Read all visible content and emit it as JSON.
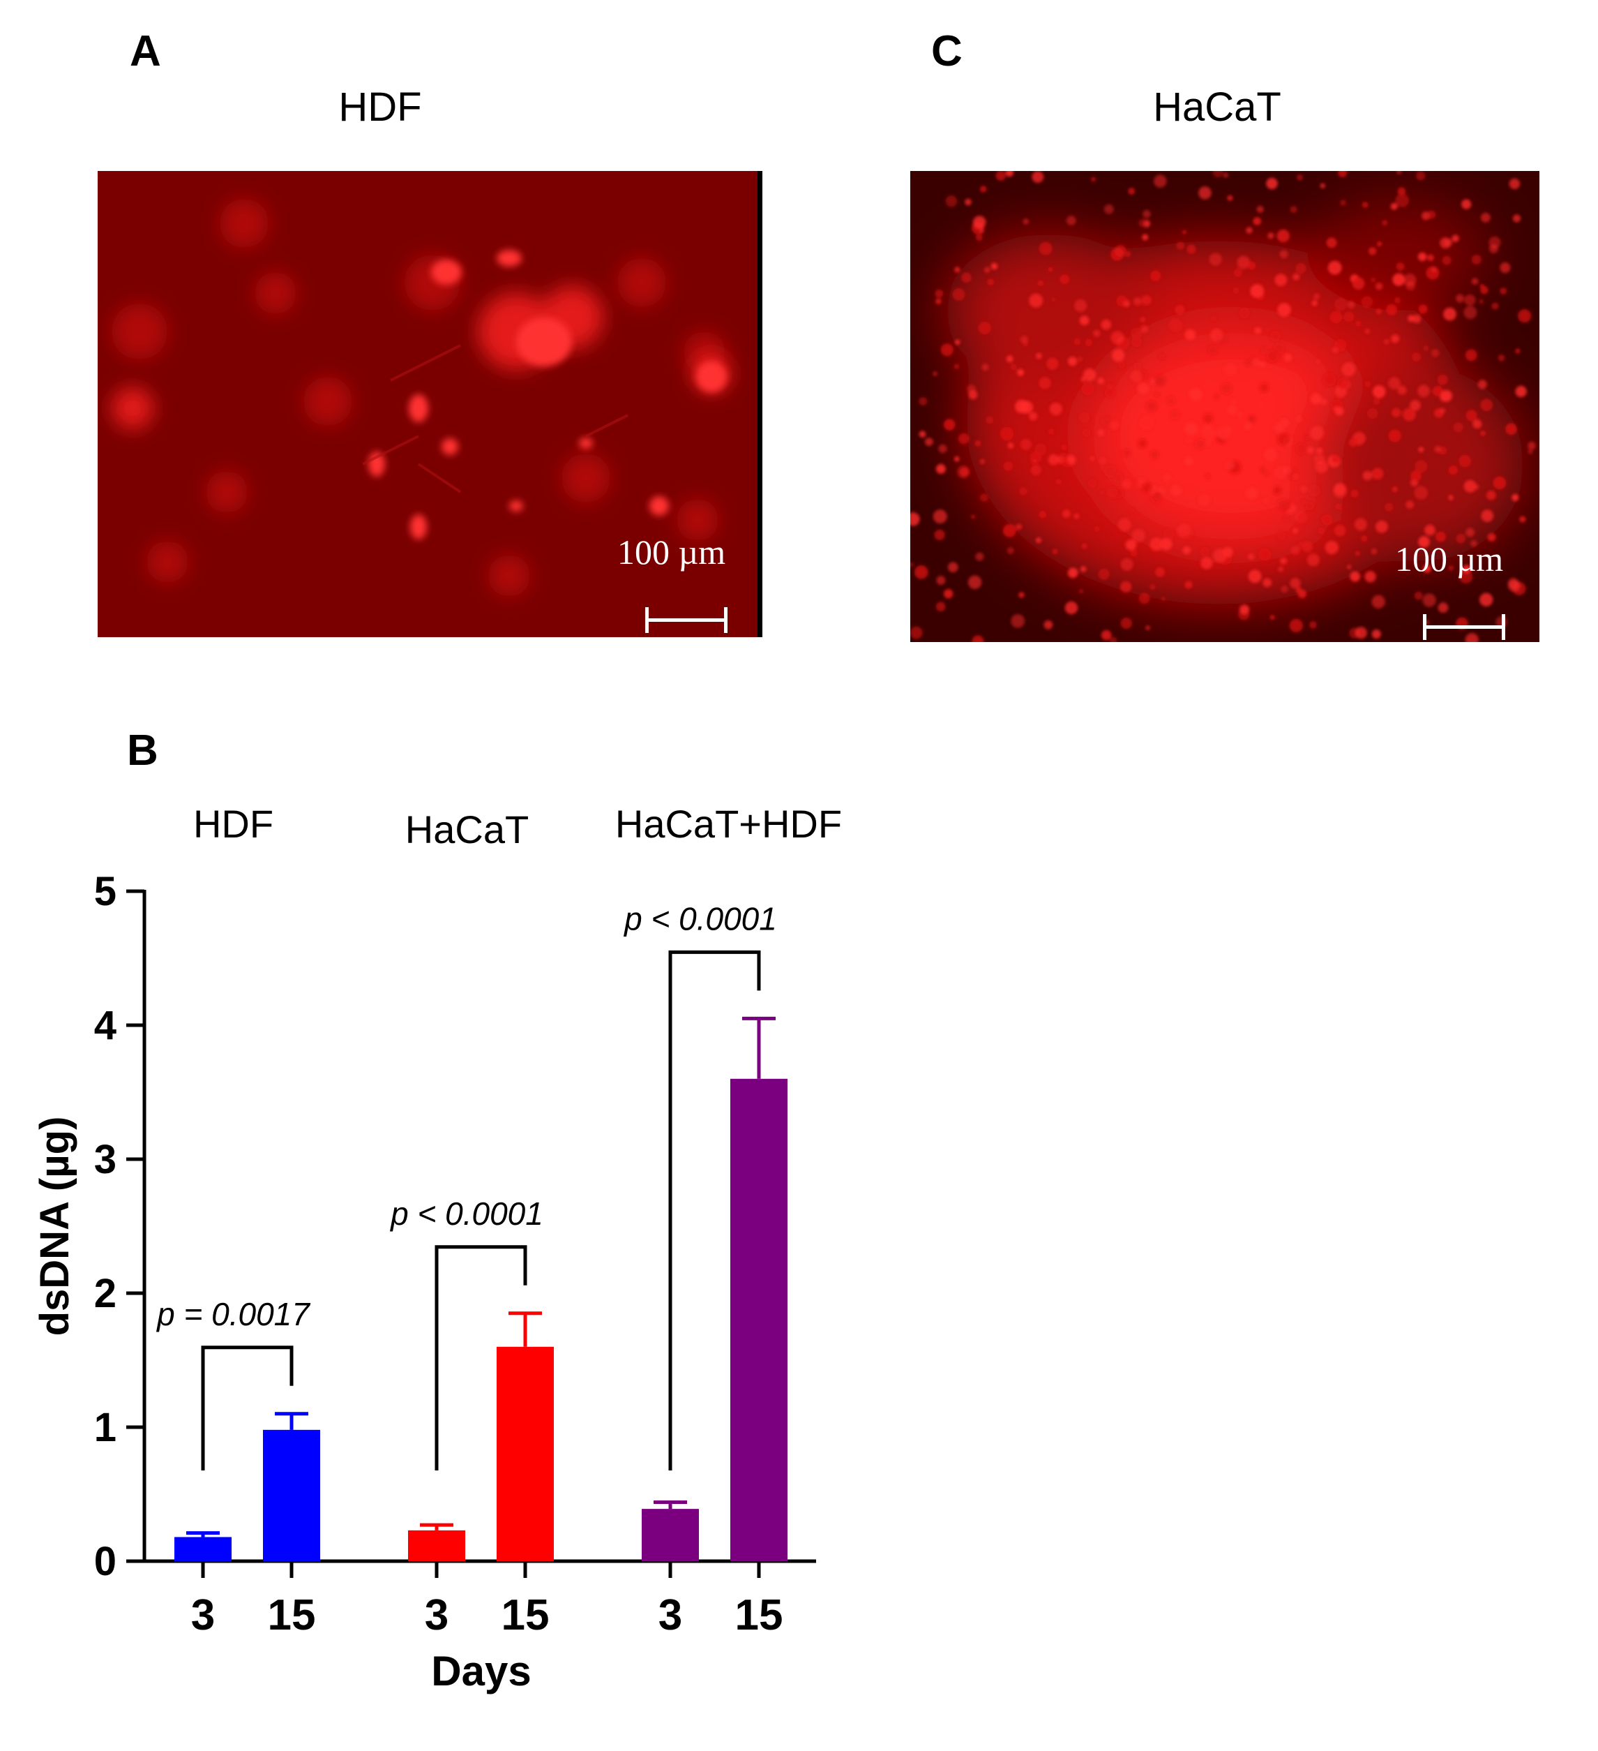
{
  "panel_a": {
    "letter": "A",
    "title": "HDF",
    "scale_label": "100 µm"
  },
  "panel_c": {
    "letter": "C",
    "title": "HaCaT",
    "scale_label": "100 µm"
  },
  "panel_b": {
    "letter": "B"
  },
  "chart_data": {
    "type": "bar",
    "title": "",
    "xlabel": "Days",
    "ylabel": "dsDNA (µg)",
    "ylim": [
      0,
      5
    ],
    "yticks": [
      0,
      1,
      2,
      3,
      4,
      5
    ],
    "grid": false,
    "groups": [
      {
        "name": "HDF",
        "color": "#0000ff",
        "categories": [
          "3",
          "15"
        ],
        "values": [
          0.18,
          0.98
        ],
        "errors": [
          0.03,
          0.12
        ],
        "annotation": "p = 0.0017"
      },
      {
        "name": "HaCaT",
        "color": "#ff0000",
        "categories": [
          "3",
          "15"
        ],
        "values": [
          0.23,
          1.6
        ],
        "errors": [
          0.04,
          0.25
        ],
        "annotation": "p < 0.0001"
      },
      {
        "name": "HaCaT+HDF",
        "color": "#7a0080",
        "categories": [
          "3",
          "15"
        ],
        "values": [
          0.39,
          3.6
        ],
        "errors": [
          0.05,
          0.45
        ],
        "annotation": "p < 0.0001"
      }
    ]
  }
}
